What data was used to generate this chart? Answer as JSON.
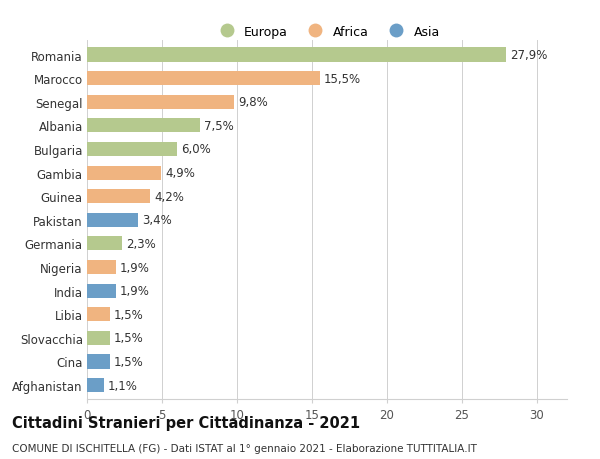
{
  "countries": [
    "Romania",
    "Marocco",
    "Senegal",
    "Albania",
    "Bulgaria",
    "Gambia",
    "Guinea",
    "Pakistan",
    "Germania",
    "Nigeria",
    "India",
    "Libia",
    "Slovacchia",
    "Cina",
    "Afghanistan"
  ],
  "values": [
    27.9,
    15.5,
    9.8,
    7.5,
    6.0,
    4.9,
    4.2,
    3.4,
    2.3,
    1.9,
    1.9,
    1.5,
    1.5,
    1.5,
    1.1
  ],
  "labels": [
    "27,9%",
    "15,5%",
    "9,8%",
    "7,5%",
    "6,0%",
    "4,9%",
    "4,2%",
    "3,4%",
    "2,3%",
    "1,9%",
    "1,9%",
    "1,5%",
    "1,5%",
    "1,5%",
    "1,1%"
  ],
  "continents": [
    "Europa",
    "Africa",
    "Africa",
    "Europa",
    "Europa",
    "Africa",
    "Africa",
    "Asia",
    "Europa",
    "Africa",
    "Asia",
    "Africa",
    "Europa",
    "Asia",
    "Asia"
  ],
  "colors": {
    "Europa": "#b5c98e",
    "Africa": "#f0b480",
    "Asia": "#6b9ec7"
  },
  "legend_labels": [
    "Europa",
    "Africa",
    "Asia"
  ],
  "xlim": [
    0,
    32
  ],
  "xticks": [
    0,
    5,
    10,
    15,
    20,
    25,
    30
  ],
  "title": "Cittadini Stranieri per Cittadinanza - 2021",
  "subtitle": "COMUNE DI ISCHITELLA (FG) - Dati ISTAT al 1° gennaio 2021 - Elaborazione TUTTITALIA.IT",
  "bg_color": "#ffffff",
  "grid_color": "#d0d0d0",
  "bar_height": 0.6,
  "label_fontsize": 8.5,
  "ytick_fontsize": 8.5,
  "xtick_fontsize": 8.5,
  "title_fontsize": 10.5,
  "subtitle_fontsize": 7.5
}
